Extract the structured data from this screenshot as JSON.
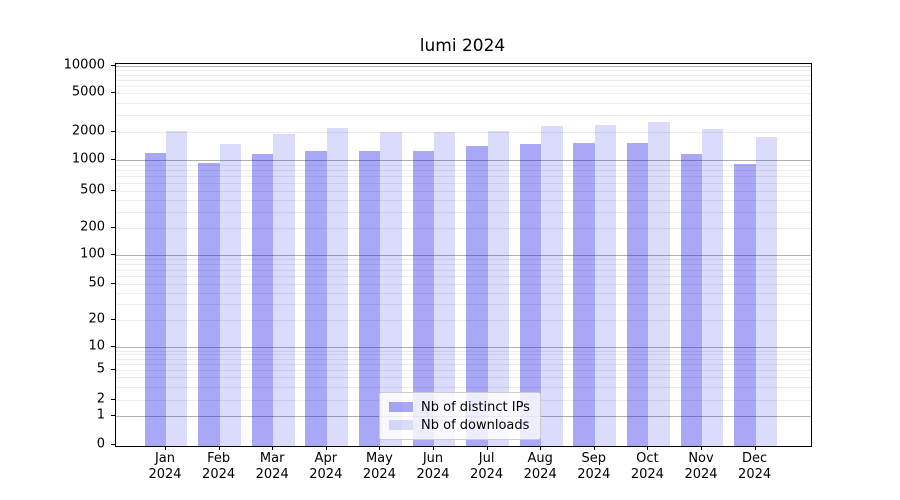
{
  "title": "lumi 2024",
  "chart_data": {
    "type": "bar",
    "title": "lumi 2024",
    "categories": [
      "Jan",
      "Feb",
      "Mar",
      "Apr",
      "May",
      "Jun",
      "Jul",
      "Aug",
      "Sep",
      "Oct",
      "Nov",
      "Dec"
    ],
    "category_year": "2024",
    "series": [
      {
        "name": "Nb of distinct IPs",
        "color": "#0000e6",
        "alpha": 0.34,
        "values": [
          1200,
          930,
          1150,
          1250,
          1250,
          1250,
          1400,
          1470,
          1520,
          1520,
          1150,
          910
        ]
      },
      {
        "name": "Nb of downloads",
        "color": "#0000e6",
        "alpha": 0.14,
        "values": [
          2050,
          1500,
          1900,
          2200,
          2000,
          1980,
          2050,
          2300,
          2350,
          2550,
          2150,
          1750
        ]
      }
    ],
    "xlabel": "",
    "ylabel": "",
    "yscale": "symlog",
    "ylim": [
      0,
      10000
    ],
    "yticks": [
      0,
      1,
      2,
      5,
      10,
      20,
      50,
      100,
      200,
      500,
      1000,
      2000,
      5000,
      10000
    ],
    "grid": "on",
    "grid_major_color": "#b0b0b0",
    "grid_minor_color": "#ececec",
    "legend_position": "lower center",
    "legend": [
      "Nb of distinct IPs",
      "Nb of downloads"
    ]
  }
}
